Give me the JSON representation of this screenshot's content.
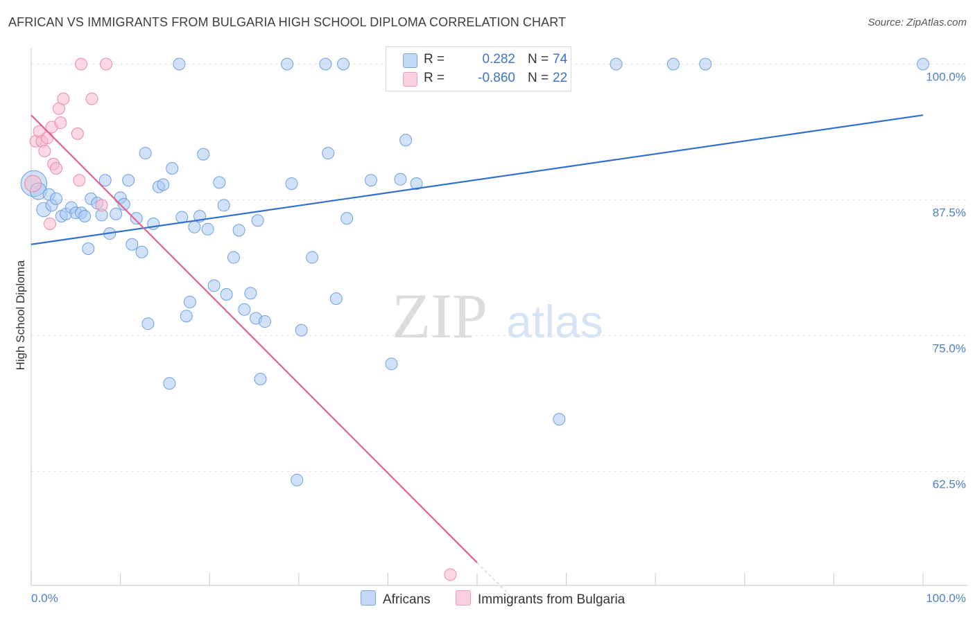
{
  "title": "AFRICAN VS IMMIGRANTS FROM BULGARIA HIGH SCHOOL DIPLOMA CORRELATION CHART",
  "source": "Source: ZipAtlas.com",
  "watermark": {
    "zip": "ZIP",
    "atlas": "atlas"
  },
  "legend": {
    "rows": [
      {
        "r_label": "R =",
        "r_value": "0.282",
        "n_label": "N =",
        "n_value": "74",
        "color": "#a9c8f2"
      },
      {
        "r_label": "R =",
        "r_value": "-0.860",
        "n_label": "N =",
        "n_value": "22",
        "color": "#f7b8cb"
      }
    ]
  },
  "bottom_legend": {
    "africans": "Africans",
    "bulgaria": "Immigrants from Bulgaria"
  },
  "chart_data": {
    "type": "scatter",
    "ylabel": "High School Diploma",
    "xlabel": "",
    "xlim": [
      0,
      100
    ],
    "ylim": [
      52,
      101.5
    ],
    "x_tick_labels": {
      "left": "0.0%",
      "right": "100.0%"
    },
    "y_ticks": [
      {
        "value": 100,
        "label": "100.0%"
      },
      {
        "value": 87.5,
        "label": "87.5%"
      },
      {
        "value": 75,
        "label": "75.0%"
      },
      {
        "value": 62.5,
        "label": "62.5%"
      }
    ],
    "grid": true,
    "legend_position": "top-center",
    "series": [
      {
        "name": "Africans",
        "color": "#a9c8f2",
        "stroke": "#6d9fe0",
        "trend_color": "#2f6fd0",
        "trend": {
          "x": [
            0,
            100
          ],
          "y": [
            83.4,
            95.3
          ]
        },
        "points": [
          [
            0.3,
            89.0,
            2.2
          ],
          [
            0.8,
            88.3,
            1.4
          ],
          [
            1.4,
            86.6,
            1.2
          ],
          [
            2.0,
            88.0,
            1.0
          ],
          [
            2.3,
            87.0,
            1.0
          ],
          [
            2.8,
            87.6,
            1.0
          ],
          [
            3.4,
            86.0,
            1.0
          ],
          [
            3.9,
            86.2,
            1.0
          ],
          [
            4.5,
            86.8,
            1.0
          ],
          [
            5.0,
            86.3,
            1.0
          ],
          [
            5.6,
            86.3,
            1.0
          ],
          [
            6.0,
            86.0,
            1.0
          ],
          [
            6.4,
            83.0,
            1.0
          ],
          [
            6.7,
            87.6,
            1.0
          ],
          [
            7.4,
            87.2,
            1.0
          ],
          [
            7.9,
            86.1,
            1.0
          ],
          [
            8.3,
            89.3,
            1.0
          ],
          [
            8.8,
            84.4,
            1.0
          ],
          [
            9.5,
            86.2,
            1.0
          ],
          [
            10.0,
            87.7,
            1.0
          ],
          [
            10.4,
            87.1,
            1.0
          ],
          [
            10.9,
            89.3,
            1.0
          ],
          [
            11.3,
            83.4,
            1.0
          ],
          [
            11.8,
            85.8,
            1.0
          ],
          [
            12.4,
            82.7,
            1.0
          ],
          [
            12.8,
            91.8,
            1.0
          ],
          [
            13.1,
            76.1,
            1.0
          ],
          [
            13.7,
            85.3,
            1.0
          ],
          [
            14.3,
            88.7,
            1.0
          ],
          [
            14.8,
            88.9,
            1.0
          ],
          [
            15.5,
            70.6,
            1.0
          ],
          [
            15.8,
            90.4,
            1.0
          ],
          [
            16.6,
            100.0,
            1.0
          ],
          [
            16.9,
            85.9,
            1.0
          ],
          [
            17.4,
            76.8,
            1.0
          ],
          [
            17.8,
            78.1,
            1.0
          ],
          [
            18.3,
            85.0,
            1.0
          ],
          [
            18.9,
            86.0,
            1.0
          ],
          [
            19.3,
            91.7,
            1.0
          ],
          [
            19.8,
            84.8,
            1.0
          ],
          [
            20.5,
            79.6,
            1.0
          ],
          [
            21.1,
            89.1,
            1.0
          ],
          [
            21.6,
            87.0,
            1.0
          ],
          [
            21.9,
            78.8,
            1.0
          ],
          [
            22.7,
            82.2,
            1.0
          ],
          [
            23.3,
            84.7,
            1.0
          ],
          [
            23.9,
            77.4,
            1.0
          ],
          [
            24.6,
            78.9,
            1.0
          ],
          [
            25.2,
            76.6,
            1.0
          ],
          [
            25.4,
            85.6,
            1.0
          ],
          [
            25.7,
            71.0,
            1.0
          ],
          [
            26.2,
            76.3,
            1.0
          ],
          [
            28.7,
            100.0,
            1.0
          ],
          [
            29.2,
            89.0,
            1.0
          ],
          [
            29.8,
            61.7,
            1.0
          ],
          [
            30.3,
            75.5,
            1.0
          ],
          [
            31.5,
            82.2,
            1.0
          ],
          [
            33.0,
            100.0,
            1.0
          ],
          [
            33.3,
            91.8,
            1.0
          ],
          [
            34.2,
            78.4,
            1.0
          ],
          [
            35.0,
            100.0,
            1.0
          ],
          [
            35.4,
            85.8,
            1.0
          ],
          [
            38.1,
            89.3,
            1.0
          ],
          [
            40.4,
            72.4,
            1.0
          ],
          [
            41.4,
            89.4,
            1.0
          ],
          [
            42.0,
            93.0,
            1.0
          ],
          [
            43.2,
            89.0,
            1.0
          ],
          [
            45.0,
            100.0,
            1.0
          ],
          [
            55.6,
            99.5,
            1.0
          ],
          [
            59.2,
            67.3,
            1.0
          ],
          [
            65.6,
            100.0,
            1.0
          ],
          [
            72.0,
            100.0,
            1.0
          ],
          [
            75.6,
            100.0,
            1.0
          ],
          [
            100.0,
            100.0,
            1.0
          ]
        ]
      },
      {
        "name": "Immigrants from Bulgaria",
        "color": "#f7b8cb",
        "stroke": "#ea8aa8",
        "trend_color": "#e0628e",
        "trend": {
          "x": [
            0,
            50
          ],
          "y": [
            95.3,
            54.1
          ]
        },
        "trend_dashed": {
          "x": [
            50,
            55
          ],
          "y": [
            54.1,
            50.0
          ]
        },
        "points": [
          [
            0.2,
            89.0,
            1.4
          ],
          [
            0.5,
            92.9,
            1.0
          ],
          [
            0.9,
            93.8,
            1.0
          ],
          [
            1.2,
            92.9,
            1.0
          ],
          [
            1.5,
            92.0,
            1.0
          ],
          [
            1.8,
            93.2,
            1.0
          ],
          [
            2.1,
            85.3,
            1.0
          ],
          [
            2.3,
            94.2,
            1.0
          ],
          [
            2.5,
            90.8,
            1.0
          ],
          [
            2.8,
            90.4,
            1.0
          ],
          [
            3.1,
            95.9,
            1.0
          ],
          [
            3.3,
            94.6,
            1.0
          ],
          [
            3.6,
            96.8,
            1.0
          ],
          [
            5.2,
            93.6,
            1.0
          ],
          [
            5.4,
            89.3,
            1.0
          ],
          [
            5.6,
            100.0,
            1.0
          ],
          [
            6.8,
            96.8,
            1.0
          ],
          [
            7.9,
            87.0,
            1.0
          ],
          [
            8.4,
            100.0,
            1.0
          ],
          [
            47.0,
            53.0,
            1.0
          ]
        ]
      }
    ]
  }
}
